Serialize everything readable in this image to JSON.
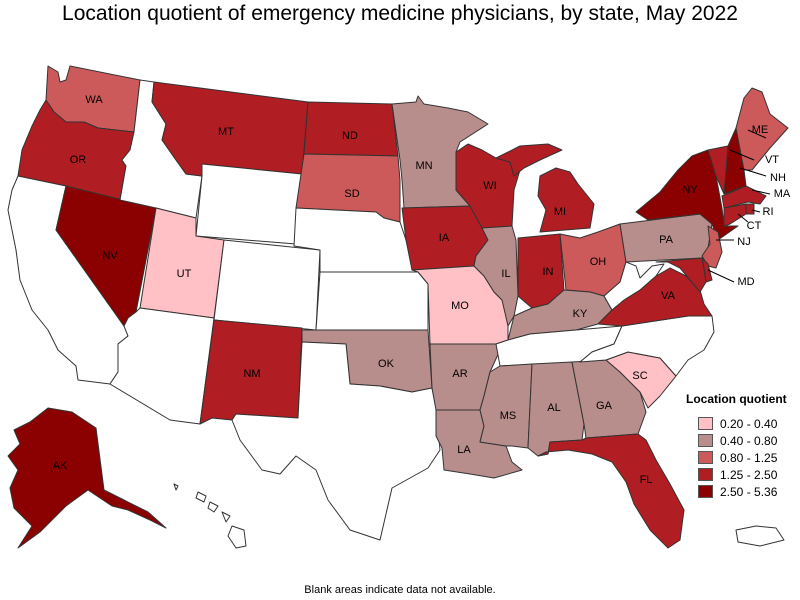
{
  "title": "Location quotient of emergency medicine physicians, by state, May 2022",
  "footnote": "Blank areas indicate data not available.",
  "legend": {
    "title": "Location quotient",
    "classes": [
      {
        "label": "0.20 - 0.40",
        "color": "#ffc0c6"
      },
      {
        "label": "0.40 - 0.80",
        "color": "#b88e8c"
      },
      {
        "label": "0.80 - 1.25",
        "color": "#cd5a5a"
      },
      {
        "label": "1.25 - 2.50",
        "color": "#b01e23"
      },
      {
        "label": "2.50 - 5.36",
        "color": "#8b0000"
      }
    ]
  },
  "states": {
    "WA": {
      "label": "WA",
      "class": 2
    },
    "OR": {
      "label": "OR",
      "class": 3
    },
    "CA": {
      "label": "",
      "class": null
    },
    "NV": {
      "label": "NV",
      "class": 4
    },
    "ID": {
      "label": "",
      "class": null
    },
    "MT": {
      "label": "MT",
      "class": 3
    },
    "WY": {
      "label": "",
      "class": null
    },
    "UT": {
      "label": "UT",
      "class": 0
    },
    "CO": {
      "label": "",
      "class": null
    },
    "AZ": {
      "label": "",
      "class": null
    },
    "NM": {
      "label": "NM",
      "class": 3
    },
    "ND": {
      "label": "ND",
      "class": 3
    },
    "SD": {
      "label": "SD",
      "class": 2
    },
    "NE": {
      "label": "",
      "class": null
    },
    "KS": {
      "label": "",
      "class": null
    },
    "OK": {
      "label": "OK",
      "class": 1
    },
    "TX": {
      "label": "",
      "class": null
    },
    "MN": {
      "label": "MN",
      "class": 1
    },
    "IA": {
      "label": "IA",
      "class": 3
    },
    "MO": {
      "label": "MO",
      "class": 0
    },
    "AR": {
      "label": "AR",
      "class": 1
    },
    "LA": {
      "label": "LA",
      "class": 1
    },
    "WI": {
      "label": "WI",
      "class": 3
    },
    "IL": {
      "label": "IL",
      "class": 1
    },
    "MI": {
      "label": "MI",
      "class": 3
    },
    "IN": {
      "label": "IN",
      "class": 3
    },
    "OH": {
      "label": "OH",
      "class": 2
    },
    "KY": {
      "label": "KY",
      "class": 1
    },
    "TN": {
      "label": "",
      "class": null
    },
    "MS": {
      "label": "MS",
      "class": 1
    },
    "AL": {
      "label": "AL",
      "class": 1
    },
    "GA": {
      "label": "GA",
      "class": 1
    },
    "FL": {
      "label": "FL",
      "class": 3
    },
    "SC": {
      "label": "SC",
      "class": 0
    },
    "NC": {
      "label": "",
      "class": null
    },
    "VA": {
      "label": "VA",
      "class": 3
    },
    "WV": {
      "label": "",
      "class": null
    },
    "PA": {
      "label": "PA",
      "class": 1
    },
    "NY": {
      "label": "NY",
      "class": 4
    },
    "NJ": {
      "label": "NJ",
      "class": 2
    },
    "DE": {
      "label": "",
      "class": 3
    },
    "MD": {
      "label": "MD",
      "class": 3
    },
    "VT": {
      "label": "VT",
      "class": 3
    },
    "NH": {
      "label": "NH",
      "class": 4
    },
    "ME": {
      "label": "ME",
      "class": 2
    },
    "MA": {
      "label": "MA",
      "class": 3
    },
    "RI": {
      "label": "RI",
      "class": 3
    },
    "CT": {
      "label": "CT",
      "class": 3
    },
    "AK": {
      "label": "AK",
      "class": 4
    },
    "HI": {
      "label": "",
      "class": null
    },
    "PR": {
      "label": "",
      "class": null
    }
  }
}
